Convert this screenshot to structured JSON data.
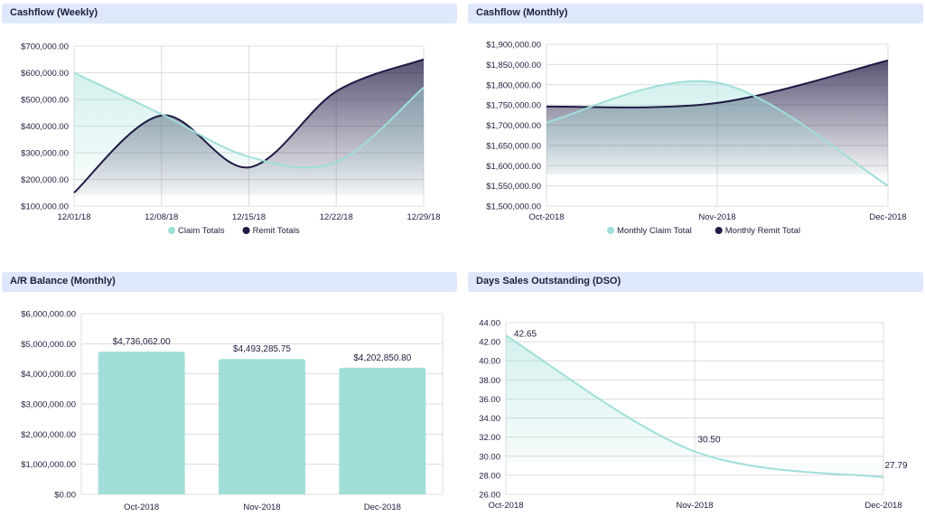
{
  "colors": {
    "claim": "#9fdfd9",
    "remit": "#1e1a44",
    "bar": "#a1ded9",
    "grid": "#dcdcdc",
    "header_bg": "#dfe8fb"
  },
  "panels": {
    "weekly_title": "Cashflow (Weekly)",
    "monthly_title": "Cashflow (Monthly)",
    "ar_title": "A/R Balance (Monthly)",
    "dso_title": "Days Sales Outstanding (DSO)"
  },
  "chart_data": [
    {
      "id": "weekly",
      "type": "area",
      "title": "Cashflow (Weekly)",
      "x": [
        "12/01/18",
        "12/08/18",
        "12/15/18",
        "12/22/18",
        "12/29/18"
      ],
      "yticks": [
        "$100,000.00",
        "$200,000.00",
        "$300,000.00",
        "$400,000.00",
        "$500,000.00",
        "$600,000.00",
        "$700,000.00"
      ],
      "ylim": [
        100000,
        700000
      ],
      "series": [
        {
          "name": "Claim Totals",
          "values": [
            600000,
            445000,
            285000,
            265000,
            545000
          ]
        },
        {
          "name": "Remit Totals",
          "values": [
            150000,
            440000,
            245000,
            530000,
            650000
          ]
        }
      ],
      "legend": "bottom"
    },
    {
      "id": "monthly",
      "type": "area",
      "title": "Cashflow (Monthly)",
      "x": [
        "Oct-2018",
        "Nov-2018",
        "Dec-2018"
      ],
      "yticks": [
        "$1,500,000.00",
        "$1,550,000.00",
        "$1,600,000.00",
        "$1,650,000.00",
        "$1,700,000.00",
        "$1,750,000.00",
        "$1,800,000.00",
        "$1,850,000.00",
        "$1,900,000.00"
      ],
      "ylim": [
        1500000,
        1900000
      ],
      "series": [
        {
          "name": "Monthly Claim Total",
          "values": [
            1707000,
            1805000,
            1550000
          ]
        },
        {
          "name": "Monthly Remit Total",
          "values": [
            1746000,
            1755000,
            1860000
          ]
        }
      ],
      "legend": "bottom"
    },
    {
      "id": "ar",
      "type": "bar",
      "title": "A/R Balance (Monthly)",
      "categories": [
        "Oct-2018",
        "Nov-2018",
        "Dec-2018"
      ],
      "values": [
        4736062.0,
        4493285.75,
        4202850.8
      ],
      "data_labels": [
        "$4,736,062.00",
        "$4,493,285.75",
        "$4,202,850.80"
      ],
      "yticks": [
        "$0.00",
        "$1,000,000.00",
        "$2,000,000.00",
        "$3,000,000.00",
        "$4,000,000.00",
        "$5,000,000.00",
        "$6,000,000.00"
      ],
      "ylim": [
        0,
        6000000
      ]
    },
    {
      "id": "dso",
      "type": "area",
      "title": "Days Sales Outstanding (DSO)",
      "x": [
        "Oct-2018",
        "Nov-2018",
        "Dec-2018"
      ],
      "yticks": [
        "26.00",
        "28.00",
        "30.00",
        "32.00",
        "34.00",
        "36.00",
        "38.00",
        "40.00",
        "42.00",
        "44.00"
      ],
      "ylim": [
        26,
        44
      ],
      "series": [
        {
          "values": [
            42.65,
            30.5,
            27.79
          ]
        }
      ],
      "data_labels": [
        "42.65",
        "30.50",
        "27.79"
      ]
    }
  ]
}
